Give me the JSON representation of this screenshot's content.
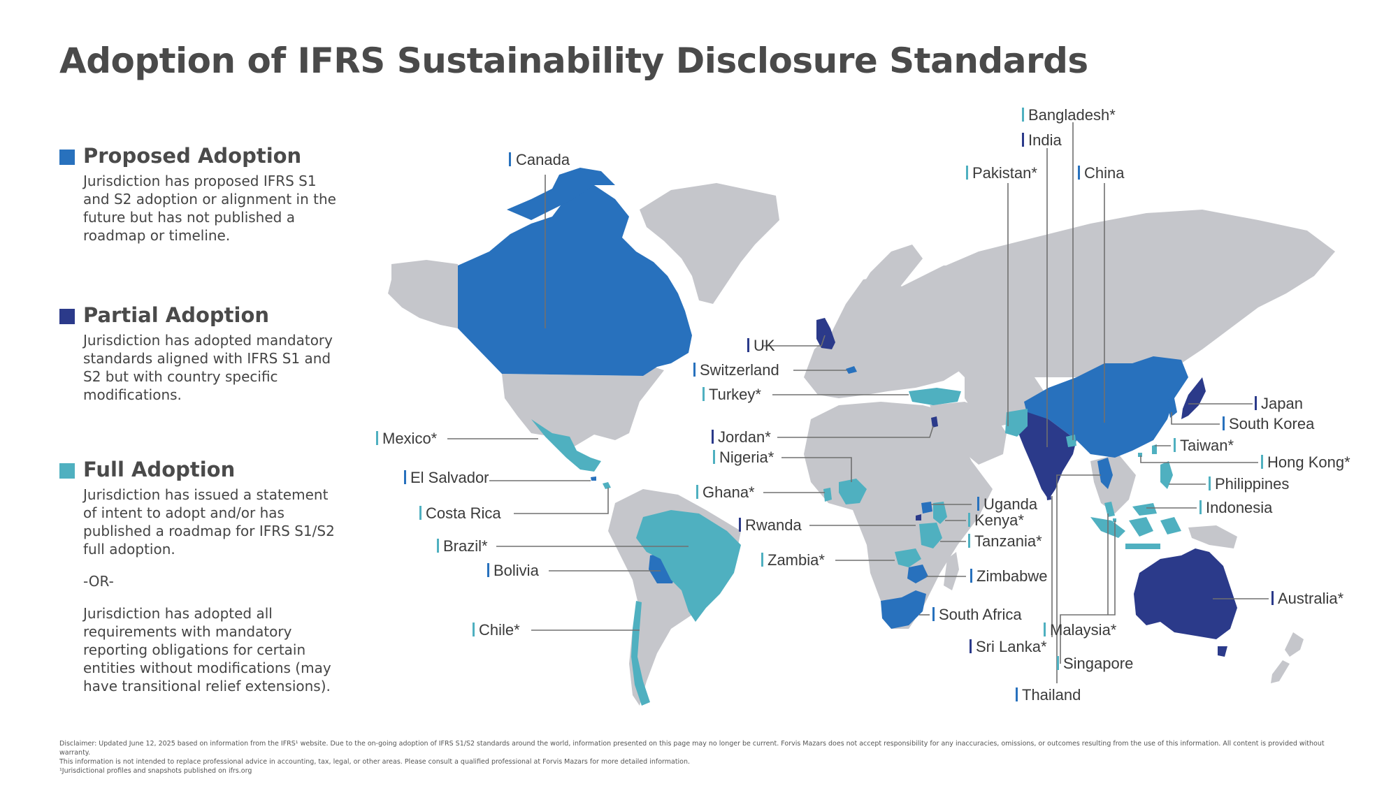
{
  "title": "Adoption of IFRS Sustainability Disclosure Standards",
  "colors": {
    "proposed": "#2871bd",
    "partial": "#2b3a8a",
    "full": "#4fb0c0",
    "land": "#c5c6cb"
  },
  "legend": {
    "proposed": {
      "title": "Proposed Adoption",
      "desc": "Jurisdiction has proposed IFRS S1 and S2 adoption or alignment in the future but has not published a roadmap or timeline."
    },
    "partial": {
      "title": "Partial Adoption",
      "desc": "Jurisdiction has adopted mandatory standards aligned with IFRS S1 and S2 but with country specific modifications."
    },
    "full": {
      "title": "Full Adoption",
      "desc1": "Jurisdiction has issued a statement of intent to adopt and/or has published a roadmap for IFRS S1/S2 full adoption.",
      "or": "-OR-",
      "desc2": "Jurisdiction has adopted all requirements with mandatory reporting obligations for certain entities without modifications (may have transitional relief extensions)."
    }
  },
  "labels": {
    "canada": "Canada",
    "mexico": "Mexico*",
    "el_salvador": "El Salvador",
    "costa_rica": "Costa Rica",
    "brazil": "Brazil*",
    "bolivia": "Bolivia",
    "chile": "Chile*",
    "uk": "UK",
    "switzerland": "Switzerland",
    "turkey": "Turkey*",
    "jordan": "Jordan*",
    "nigeria": "Nigeria*",
    "ghana": "Ghana*",
    "rwanda": "Rwanda",
    "zambia": "Zambia*",
    "uganda": "Uganda",
    "kenya": "Kenya*",
    "tanzania": "Tanzania*",
    "zimbabwe": "Zimbabwe",
    "south_africa": "South Africa",
    "bangladesh": "Bangladesh*",
    "india": "India",
    "pakistan": "Pakistan*",
    "china": "China",
    "japan": "Japan",
    "south_korea": "South Korea",
    "taiwan": "Taiwan*",
    "hong_kong": "Hong Kong*",
    "philippines": "Philippines",
    "indonesia": "Indonesia",
    "australia": "Australia*",
    "malaysia": "Malaysia*",
    "sri_lanka": "Sri Lanka*",
    "singapore": "Singapore",
    "thailand": "Thailand"
  },
  "disclaimer": {
    "line1": "Disclaimer: Updated June 12, 2025 based on information from the IFRS¹ website. Due to the on-going adoption of IFRS S1/S2 standards around the world, information presented on this page may no longer be current. Forvis Mazars does not accept responsibility for any inaccuracies, omissions, or outcomes resulting from the use of this information. All content is provided without warranty.",
    "line2": "This information is not intended to replace professional advice in accounting, tax, legal, or other areas. Please consult a qualified professional at Forvis Mazars for more detailed information.",
    "line3": "¹Jurisdictional profiles and snapshots published on ifrs.org"
  }
}
